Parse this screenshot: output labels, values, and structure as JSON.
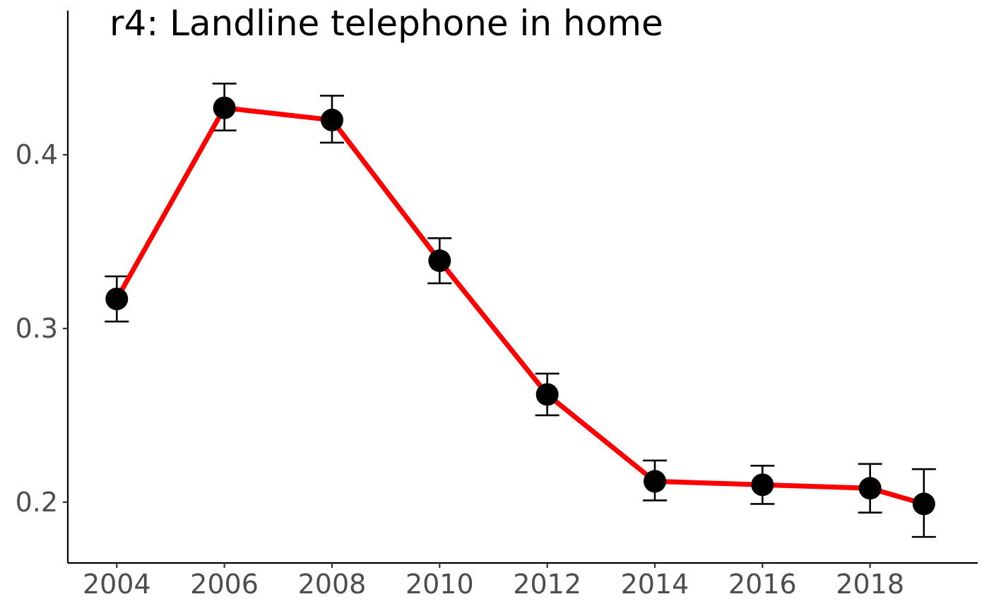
{
  "chart_data": {
    "type": "line",
    "title": "r4: Landline telephone in home",
    "xlabel": "",
    "ylabel": "",
    "x": [
      2004,
      2006,
      2008,
      2010,
      2012,
      2014,
      2016,
      2018,
      2019
    ],
    "series": [
      {
        "values": [
          0.317,
          0.427,
          0.42,
          0.339,
          0.262,
          0.212,
          0.21,
          0.208,
          0.199
        ],
        "ci_low": [
          0.304,
          0.414,
          0.407,
          0.326,
          0.25,
          0.201,
          0.199,
          0.194,
          0.18
        ],
        "ci_high": [
          0.33,
          0.441,
          0.434,
          0.352,
          0.274,
          0.224,
          0.221,
          0.222,
          0.219
        ],
        "line_color": "#ff0000",
        "point_color": "#000000"
      }
    ],
    "xlim": [
      2003.09,
      2020.0
    ],
    "ylim": [
      0.165,
      0.483
    ],
    "x_ticks": [
      "2004",
      "2006",
      "2008",
      "2010",
      "2012",
      "2014",
      "2016",
      "2018"
    ],
    "y_ticks": [
      "0.2",
      "0.3",
      "0.4"
    ],
    "grid": false,
    "legend": "none"
  }
}
